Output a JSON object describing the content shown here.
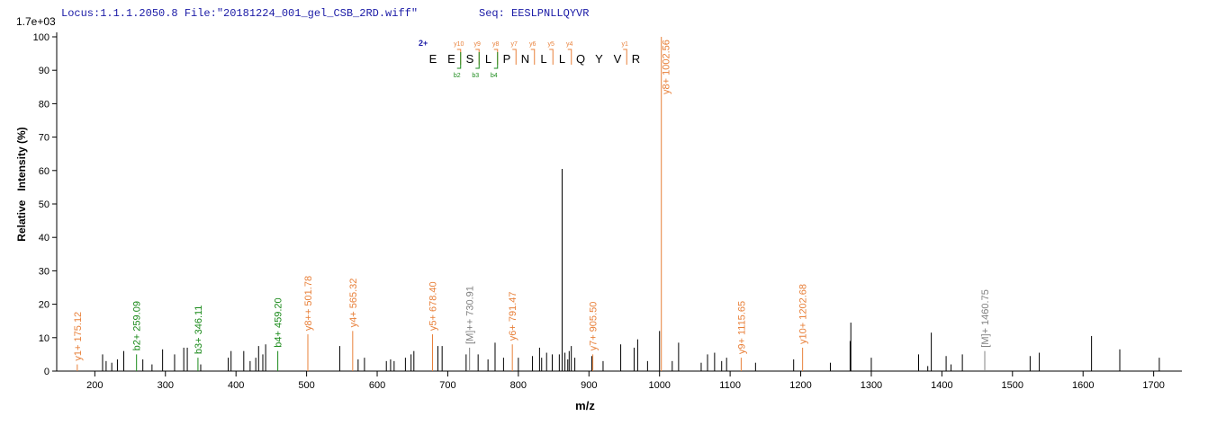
{
  "chart_data": {
    "type": "stem",
    "title": "Locus:1.1.1.2050.8 File:\"20181224_001_gel_CSB_2RD.wiff\"",
    "subtitle": "Seq: EESLPNLLQYVR",
    "scale_label": "1.7e+03",
    "x_label": "m/z",
    "y_label": "Relative   Intensity (%)",
    "xlim": [
      146,
      1740
    ],
    "ylim": [
      0,
      100
    ],
    "xticks": [
      200,
      300,
      400,
      500,
      600,
      700,
      800,
      900,
      1000,
      1100,
      1200,
      1300,
      1400,
      1500,
      1600,
      1700
    ],
    "yticks": [
      0,
      10,
      20,
      30,
      40,
      50,
      60,
      70,
      80,
      90,
      100
    ],
    "sequence": {
      "charge": "2+",
      "residues": [
        "E",
        "E",
        "S",
        "L",
        "P",
        "N",
        "L",
        "L",
        "Q",
        "Y",
        "V",
        "R"
      ],
      "y_ions": [
        "y10",
        "y9",
        "y8",
        "y7",
        "y6",
        "y5",
        "y4",
        "y1"
      ],
      "b_ions": [
        "b2",
        "b3",
        "b4"
      ],
      "y_color": "#e8803a",
      "b_color": "#1a8a1a",
      "charge_color": "#1a1aa6"
    },
    "series": [
      {
        "color": "#000000",
        "x": [
          211,
          216,
          224,
          232,
          241,
          268,
          281,
          296,
          313,
          326,
          331,
          350,
          389,
          393,
          411,
          420,
          428,
          432,
          438,
          442,
          547,
          573,
          582,
          613,
          619,
          624,
          640,
          648,
          652,
          686,
          692,
          726,
          743,
          757,
          767,
          779,
          800,
          820,
          830,
          833,
          840,
          848,
          858,
          862,
          866,
          870,
          872,
          875,
          880,
          904,
          920,
          945,
          964,
          969,
          983,
          1000,
          1018,
          1027,
          1059,
          1068,
          1078,
          1088,
          1095,
          1136,
          1190,
          1242,
          1270,
          1271,
          1300,
          1367,
          1380,
          1385,
          1406,
          1413,
          1429,
          1525,
          1538,
          1612,
          1652,
          1708
        ],
        "values": [
          5,
          3,
          2.5,
          3.5,
          6,
          3.5,
          2,
          6.5,
          5,
          7,
          7,
          2,
          4,
          6,
          6,
          3,
          4,
          7.5,
          5,
          8,
          7.5,
          3.5,
          4,
          3,
          3.5,
          3,
          4,
          5,
          6,
          7.5,
          7.5,
          5,
          5,
          3.5,
          8.5,
          4,
          4,
          4.5,
          7,
          4,
          5.5,
          5,
          5,
          60.5,
          5.5,
          3.5,
          6,
          7.5,
          4,
          4.5,
          3,
          8,
          7,
          9.5,
          3,
          12,
          3,
          8.5,
          2.5,
          5,
          5.5,
          3,
          4,
          2.5,
          3.5,
          2.5,
          9,
          14.5,
          4,
          5,
          1.5,
          11.5,
          4.5,
          2,
          5,
          4.5,
          5.5,
          10.5,
          6.5,
          4
        ]
      },
      {
        "color": "#e8803a",
        "x": [
          175.12,
          501.78,
          565.32,
          678.4,
          791.47,
          905.5,
          1002.56,
          1115.65,
          1202.68
        ],
        "values": [
          2,
          11,
          12,
          11,
          8,
          5,
          100,
          4,
          7
        ],
        "labels": [
          "y1+ 175.12",
          "y8++ 501.78",
          "y4+ 565.32",
          "y5+ 678.40",
          "y6+ 791.47",
          "y7+ 905.50",
          "y8+ 1002.56",
          "y9+ 1115.65",
          "y10+ 1202.68"
        ]
      },
      {
        "color": "#1a8a1a",
        "x": [
          259.09,
          346.11,
          459.2
        ],
        "values": [
          5,
          4,
          6
        ],
        "labels": [
          "b2+ 259.09",
          "b3+ 346.11",
          "b4+ 459.20"
        ]
      },
      {
        "color": "#808080",
        "x": [
          730.91,
          1460.75
        ],
        "values": [
          7,
          6
        ],
        "labels": [
          "[M]++ 730.91",
          "[M]+ 1460.75"
        ]
      }
    ]
  }
}
